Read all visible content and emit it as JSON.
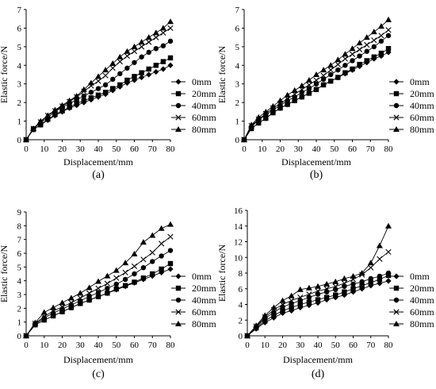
{
  "chart_data": [
    {
      "panel_label": "(a)",
      "type": "line",
      "xlabel": "Displacement/mm",
      "ylabel": "Elastic force/N",
      "xlim": [
        0,
        80
      ],
      "ylim": [
        0,
        7
      ],
      "xticks": [
        0,
        10,
        20,
        30,
        40,
        50,
        60,
        70,
        80
      ],
      "yticks": [
        0,
        1,
        2,
        3,
        4,
        5,
        6,
        7
      ],
      "grid": false,
      "legend": "right",
      "x": [
        0,
        4,
        8,
        12,
        16,
        20,
        24,
        28,
        32,
        36,
        40,
        44,
        48,
        52,
        56,
        60,
        64,
        68,
        72,
        76,
        80
      ],
      "series": [
        {
          "name": "0mm",
          "marker": "diamond",
          "values": [
            0,
            0.55,
            0.8,
            1.05,
            1.3,
            1.5,
            1.7,
            1.85,
            2.0,
            2.15,
            2.3,
            2.45,
            2.65,
            2.85,
            3.05,
            3.2,
            3.35,
            3.5,
            3.65,
            3.8,
            4.0
          ]
        },
        {
          "name": "20mm",
          "marker": "square",
          "values": [
            0,
            0.55,
            0.8,
            1.1,
            1.35,
            1.55,
            1.75,
            1.95,
            2.1,
            2.25,
            2.4,
            2.55,
            2.75,
            2.95,
            3.2,
            3.4,
            3.6,
            3.8,
            4.0,
            4.2,
            4.4
          ]
        },
        {
          "name": "40mm",
          "marker": "circle",
          "values": [
            0,
            0.6,
            0.9,
            1.2,
            1.5,
            1.75,
            1.95,
            2.15,
            2.35,
            2.55,
            2.75,
            2.95,
            3.25,
            3.55,
            3.85,
            4.15,
            4.45,
            4.7,
            4.9,
            5.05,
            5.3
          ]
        },
        {
          "name": "60mm",
          "marker": "x",
          "values": [
            0,
            0.6,
            0.95,
            1.3,
            1.55,
            1.8,
            2.05,
            2.3,
            2.6,
            2.9,
            3.15,
            3.45,
            3.85,
            4.2,
            4.5,
            4.75,
            5.0,
            5.25,
            5.5,
            5.75,
            6.0
          ]
        },
        {
          "name": "80mm",
          "marker": "triangle",
          "values": [
            0,
            0.6,
            1.0,
            1.3,
            1.6,
            1.85,
            2.1,
            2.35,
            2.7,
            3.05,
            3.4,
            3.75,
            4.1,
            4.45,
            4.75,
            5.0,
            5.25,
            5.5,
            5.75,
            6.0,
            6.35
          ]
        }
      ]
    },
    {
      "panel_label": "(b)",
      "type": "line",
      "xlabel": "Displacement/mm",
      "ylabel": "Elastic force/N",
      "xlim": [
        0,
        80
      ],
      "ylim": [
        0,
        7
      ],
      "xticks": [
        0,
        10,
        20,
        30,
        40,
        50,
        60,
        70,
        80
      ],
      "yticks": [
        0,
        1,
        2,
        3,
        4,
        5,
        6,
        7
      ],
      "grid": false,
      "legend": "right",
      "x": [
        0,
        4,
        8,
        12,
        16,
        20,
        24,
        28,
        32,
        36,
        40,
        44,
        48,
        52,
        56,
        60,
        64,
        68,
        72,
        76,
        80
      ],
      "series": [
        {
          "name": "0mm",
          "marker": "diamond",
          "values": [
            0,
            0.6,
            0.9,
            1.15,
            1.45,
            1.7,
            1.9,
            2.1,
            2.3,
            2.5,
            2.7,
            2.95,
            3.15,
            3.35,
            3.55,
            3.75,
            3.95,
            4.15,
            4.35,
            4.5,
            4.7
          ]
        },
        {
          "name": "20mm",
          "marker": "square",
          "values": [
            0,
            0.6,
            0.9,
            1.15,
            1.45,
            1.7,
            1.9,
            2.1,
            2.3,
            2.5,
            2.7,
            2.95,
            3.15,
            3.35,
            3.6,
            3.8,
            4.05,
            4.25,
            4.45,
            4.65,
            4.9
          ]
        },
        {
          "name": "40mm",
          "marker": "circle",
          "values": [
            0,
            0.7,
            1.05,
            1.35,
            1.6,
            1.85,
            2.1,
            2.3,
            2.55,
            2.75,
            3.0,
            3.25,
            3.5,
            3.75,
            4.0,
            4.25,
            4.5,
            4.75,
            5.0,
            5.3,
            5.6
          ]
        },
        {
          "name": "60mm",
          "marker": "x",
          "values": [
            0,
            0.75,
            1.1,
            1.4,
            1.7,
            1.95,
            2.2,
            2.45,
            2.7,
            2.95,
            3.2,
            3.45,
            3.75,
            4.05,
            4.35,
            4.6,
            4.85,
            5.1,
            5.35,
            5.6,
            5.9
          ]
        },
        {
          "name": "80mm",
          "marker": "triangle",
          "values": [
            0,
            0.8,
            1.2,
            1.5,
            1.8,
            2.1,
            2.4,
            2.65,
            2.9,
            3.2,
            3.5,
            3.75,
            4.0,
            4.3,
            4.6,
            4.9,
            5.2,
            5.5,
            5.8,
            6.1,
            6.45
          ]
        }
      ]
    },
    {
      "panel_label": "(c)",
      "type": "line",
      "xlabel": "Displacement/mm",
      "ylabel": "Elastic force/N",
      "xlim": [
        0,
        80
      ],
      "ylim": [
        0,
        9
      ],
      "xticks": [
        0,
        10,
        20,
        30,
        40,
        50,
        60,
        70,
        80
      ],
      "yticks": [
        0,
        1,
        2,
        3,
        4,
        5,
        6,
        7,
        8,
        9
      ],
      "grid": false,
      "legend": "right",
      "x": [
        0,
        5,
        10,
        15,
        20,
        25,
        30,
        35,
        40,
        45,
        50,
        55,
        60,
        65,
        70,
        75,
        80
      ],
      "series": [
        {
          "name": "0mm",
          "marker": "diamond",
          "values": [
            0,
            0.8,
            1.15,
            1.45,
            1.75,
            2.05,
            2.35,
            2.6,
            2.85,
            3.1,
            3.35,
            3.6,
            3.85,
            4.1,
            4.35,
            4.6,
            4.85
          ]
        },
        {
          "name": "20mm",
          "marker": "square",
          "values": [
            0,
            0.8,
            1.15,
            1.45,
            1.75,
            2.05,
            2.35,
            2.6,
            2.85,
            3.1,
            3.4,
            3.65,
            3.9,
            4.2,
            4.5,
            4.85,
            5.25
          ]
        },
        {
          "name": "40mm",
          "marker": "circle",
          "values": [
            0,
            0.85,
            1.3,
            1.65,
            1.95,
            2.25,
            2.55,
            2.85,
            3.15,
            3.45,
            3.75,
            4.1,
            4.5,
            4.95,
            5.4,
            5.8,
            6.2
          ]
        },
        {
          "name": "60mm",
          "marker": "x",
          "values": [
            0,
            0.9,
            1.4,
            1.8,
            2.1,
            2.4,
            2.75,
            3.1,
            3.45,
            3.8,
            4.2,
            4.6,
            5.05,
            5.55,
            6.05,
            6.7,
            7.2
          ]
        },
        {
          "name": "80mm",
          "marker": "triangle",
          "values": [
            0,
            0.95,
            1.7,
            2.05,
            2.4,
            2.75,
            3.1,
            3.5,
            3.95,
            4.35,
            4.75,
            5.3,
            5.95,
            6.8,
            7.3,
            7.8,
            8.1
          ]
        }
      ]
    },
    {
      "panel_label": "(d)",
      "type": "line",
      "xlabel": "Displacement/mm",
      "ylabel": "Elastic force/N",
      "xlim": [
        0,
        80
      ],
      "ylim": [
        0,
        16
      ],
      "xticks": [
        0,
        10,
        20,
        30,
        40,
        50,
        60,
        70,
        80
      ],
      "yticks": [
        0,
        2,
        4,
        6,
        8,
        10,
        12,
        14,
        16
      ],
      "grid": false,
      "legend": "right",
      "x": [
        0,
        5,
        10,
        15,
        20,
        25,
        30,
        35,
        40,
        45,
        50,
        55,
        60,
        65,
        70,
        75,
        80
      ],
      "series": [
        {
          "name": "0mm",
          "marker": "diamond",
          "values": [
            0,
            0.9,
            1.7,
            2.3,
            2.9,
            3.2,
            3.6,
            3.9,
            4.2,
            4.6,
            4.9,
            5.2,
            5.6,
            6.0,
            6.4,
            6.7,
            7.0
          ]
        },
        {
          "name": "20mm",
          "marker": "square",
          "values": [
            0,
            1.0,
            1.9,
            2.6,
            3.2,
            3.6,
            4.0,
            4.3,
            4.6,
            4.9,
            5.2,
            5.6,
            6.0,
            6.4,
            6.8,
            7.2,
            7.7
          ]
        },
        {
          "name": "40mm",
          "marker": "circle",
          "values": [
            0,
            1.1,
            2.2,
            3.0,
            3.7,
            4.1,
            4.5,
            4.9,
            5.3,
            5.6,
            5.9,
            6.3,
            6.6,
            6.9,
            7.3,
            7.6,
            8.0
          ]
        },
        {
          "name": "60mm",
          "marker": "x",
          "values": [
            0,
            1.2,
            2.4,
            3.3,
            4.0,
            4.5,
            4.9,
            5.3,
            5.7,
            6.0,
            6.3,
            6.7,
            7.2,
            7.8,
            8.7,
            9.8,
            10.7
          ]
        },
        {
          "name": "80mm",
          "marker": "triangle",
          "values": [
            0,
            1.3,
            2.6,
            3.6,
            4.5,
            5.1,
            5.9,
            6.1,
            6.3,
            6.6,
            6.9,
            7.3,
            7.6,
            8.0,
            9.3,
            11.5,
            14.0
          ]
        }
      ]
    }
  ]
}
